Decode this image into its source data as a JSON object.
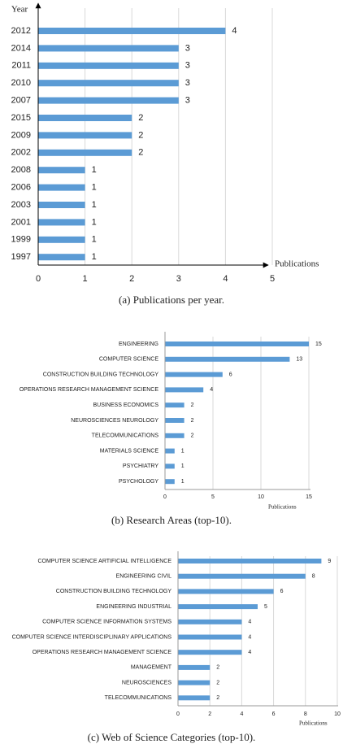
{
  "chart_data": [
    {
      "type": "barh",
      "caption": "(a)  Publications per year.",
      "ylabel": "Year",
      "xlabel": "Publications",
      "categories": [
        "2012",
        "2014",
        "2011",
        "2010",
        "2007",
        "2015",
        "2009",
        "2002",
        "2008",
        "2006",
        "2003",
        "2001",
        "1999",
        "1997"
      ],
      "values": [
        4,
        3,
        3,
        3,
        3,
        2,
        2,
        2,
        1,
        1,
        1,
        1,
        1,
        1
      ],
      "color": "#5b9bd5",
      "xlim": [
        0,
        5
      ],
      "xticks": [
        0,
        1,
        2,
        3,
        4,
        5
      ],
      "grid": true
    },
    {
      "type": "barh",
      "caption": "(b) Research Areas (top-10).",
      "xlabel": "Publications",
      "categories": [
        "ENGINEERING",
        "COMPUTER SCIENCE",
        "CONSTRUCTION BUILDING TECHNOLOGY",
        "OPERATIONS RESEARCH MANAGEMENT SCIENCE",
        "BUSINESS ECONOMICS",
        "NEUROSCIENCES NEUROLOGY",
        "TELECOMMUNICATIONS",
        "MATERIALS SCIENCE",
        "PSYCHIATRY",
        "PSYCHOLOGY"
      ],
      "values": [
        15,
        13,
        6,
        4,
        2,
        2,
        2,
        1,
        1,
        1
      ],
      "color": "#5b9bd5",
      "xlim": [
        0,
        15
      ],
      "xticks": [
        0,
        5,
        10,
        15
      ],
      "grid": true
    },
    {
      "type": "barh",
      "caption": "(c) Web of Science Categories (top-10).",
      "xlabel": "Publications",
      "categories": [
        "COMPUTER SCIENCE ARTIFICIAL INTELLIGENCE",
        "ENGINEERING CIVIL",
        "CONSTRUCTION BUILDING TECHNOLOGY",
        "ENGINEERING INDUSTRIAL",
        "COMPUTER SCIENCE INFORMATION SYSTEMS",
        "COMPUTER SCIENCE INTERDISCIPLINARY APPLICATIONS",
        "OPERATIONS RESEARCH MANAGEMENT SCIENCE",
        "MANAGEMENT",
        "NEUROSCIENCES",
        "TELECOMMUNICATIONS"
      ],
      "values": [
        9,
        8,
        6,
        5,
        4,
        4,
        4,
        2,
        2,
        2
      ],
      "color": "#5b9bd5",
      "xlim": [
        0,
        10
      ],
      "xticks": [
        0,
        2,
        4,
        6,
        8,
        10
      ],
      "grid": true
    }
  ]
}
